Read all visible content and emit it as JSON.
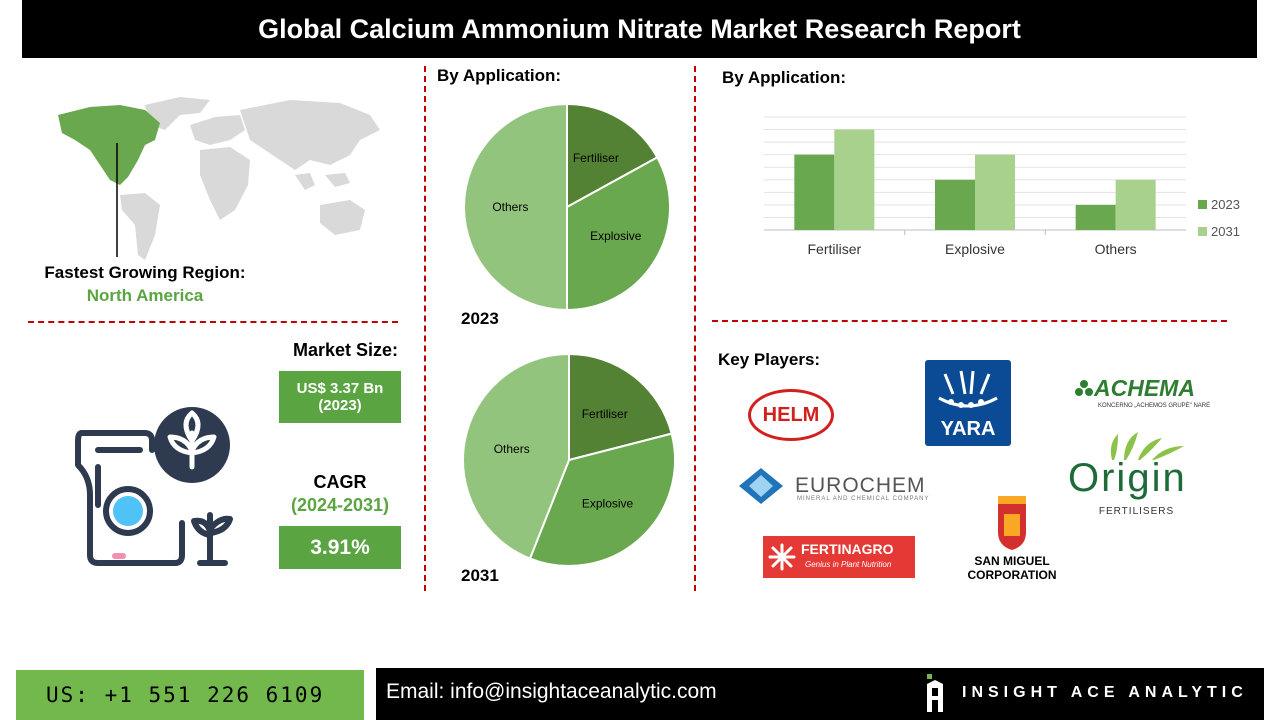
{
  "title": "Global Calcium Ammonium Nitrate Market Research Report",
  "region": {
    "label": "Fastest Growing Region:",
    "value": "North America"
  },
  "market_size": {
    "label": "Market Size:",
    "value_line1": "US$ 3.37 Bn",
    "value_line2": "(2023)"
  },
  "cagr": {
    "label": "CAGR",
    "period": "(2024-2031)",
    "value": "3.91%"
  },
  "pie_section_title": "By Application:",
  "bar_section_title": "By Application:",
  "key_players_title": "Key Players:",
  "key_players": {
    "helm": "HELM",
    "yara": "YARA",
    "achema": "ACHEMA",
    "achema_sub": "KONCERNO „ACHEMOS GRUPĖ\" NARĖ",
    "eurochem": "EUROCHEM",
    "eurochem_sub": "MINERAL AND CHEMICAL COMPANY",
    "origin": "Origin",
    "origin_sub": "FERTILISERS",
    "fertinagro": "FERTINAGRO",
    "fertinagro_sub": "Genius in Plant Nutrition",
    "san_miguel_1": "SAN MIGUEL",
    "san_miguel_2": "CORPORATION"
  },
  "footer": {
    "phone": "US: +1 551 226 6109",
    "email": "Email: info@insightaceanalytic.com",
    "brand": "INSIGHT ACE ANALYTIC"
  },
  "colors": {
    "dark_green": "#548235",
    "mid_green": "#6aa84f",
    "light_green": "#93c47d",
    "bar_2031": "#a9d18e",
    "accent_text": "#5aa542",
    "divider": "#c00000"
  },
  "chart_data": [
    {
      "type": "pie",
      "year_label": "2023",
      "slices": [
        {
          "name": "Fertiliser",
          "value": 17,
          "color": "#548235"
        },
        {
          "name": "Explosive",
          "value": 33,
          "color": "#6aa84f"
        },
        {
          "name": "Others",
          "value": 50,
          "color": "#93c47d"
        }
      ]
    },
    {
      "type": "pie",
      "year_label": "2031",
      "slices": [
        {
          "name": "Fertiliser",
          "value": 21,
          "color": "#548235"
        },
        {
          "name": "Explosive",
          "value": 35,
          "color": "#6aa84f"
        },
        {
          "name": "Others",
          "value": 44,
          "color": "#93c47d"
        }
      ]
    },
    {
      "type": "bar",
      "categories": [
        "Fertiliser",
        "Explosive",
        "Others"
      ],
      "series": [
        {
          "name": "2023",
          "values": [
            3,
            2,
            1
          ],
          "color": "#6aa84f"
        },
        {
          "name": "2031",
          "values": [
            4,
            3,
            2
          ],
          "color": "#a9d18e"
        }
      ],
      "ylim": [
        0,
        4.5
      ],
      "grid": true,
      "legend": "right"
    }
  ]
}
